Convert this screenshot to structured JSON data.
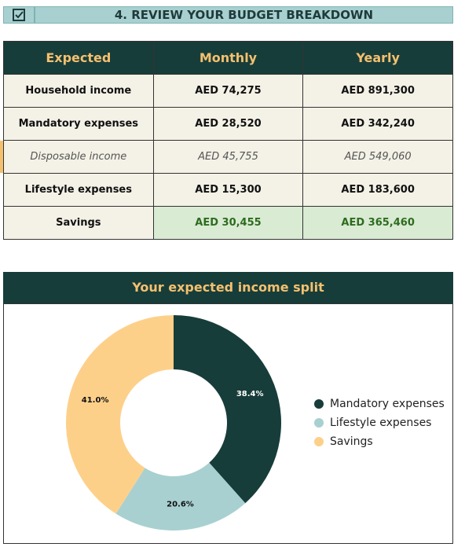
{
  "header": {
    "title": "4. REVIEW YOUR BUDGET BREAKDOWN"
  },
  "table": {
    "headers": [
      "Expected",
      "Monthly",
      "Yearly"
    ],
    "rows": [
      [
        "Household income",
        "AED 74,275",
        "AED 891,300"
      ],
      [
        "Mandatory expenses",
        "AED 28,520",
        "AED 342,240"
      ],
      [
        "Disposable income",
        "AED 45,755",
        "AED 549,060"
      ],
      [
        "Lifestyle expenses",
        "AED 15,300",
        "AED 183,600"
      ],
      [
        "Savings",
        "AED 30,455",
        "AED 365,460"
      ]
    ]
  },
  "chart_data": {
    "type": "donut",
    "title": "Your expected income split",
    "categories": [
      "Mandatory expenses",
      "Lifestyle expenses",
      "Savings"
    ],
    "values": [
      38.4,
      20.6,
      41.0
    ],
    "value_labels": [
      "38.4%",
      "20.6%",
      "41.0%"
    ],
    "colors": [
      "#173d3a",
      "#a8d0d0",
      "#fdd08a"
    ]
  }
}
